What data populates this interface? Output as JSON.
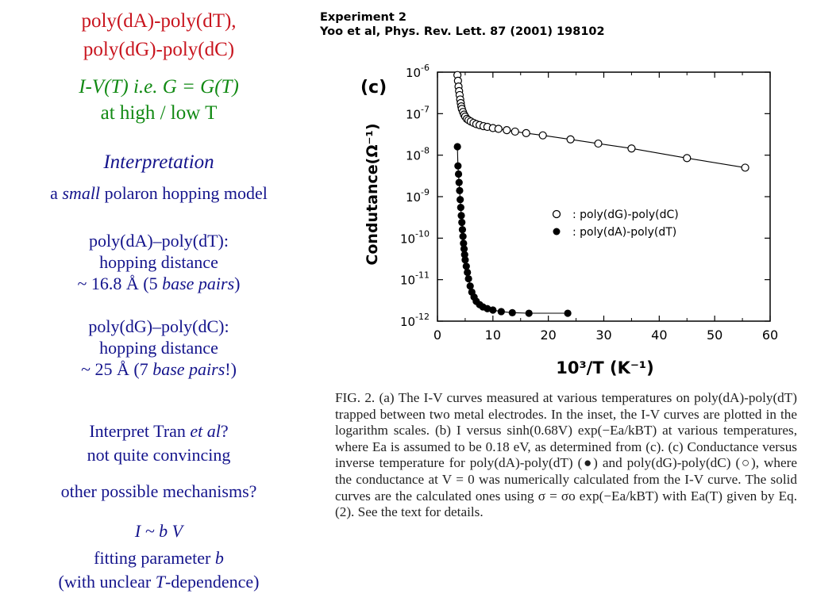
{
  "left": {
    "title_line1": "poly(dA)-poly(dT),",
    "title_line2": "poly(dG)-poly(dC)",
    "iv_line": "I-V(T) i.e. G = G(T)",
    "iv_line2": "at high / low T",
    "interp_heading": "Interpretation",
    "interp_model_a": "a",
    "interp_model_small": "small",
    "interp_model_rest": "polaron hopping model",
    "at_line1": "poly(dA)–poly(dT):",
    "at_line2": "hopping distance",
    "at_line3_a": "~ 16.8 Å (5",
    "at_line3_b": "base pairs",
    "at_line3_c": ")",
    "gc_line1": "poly(dG)–poly(dC):",
    "gc_line2": "hopping distance",
    "gc_line3_a": "~ 25 Å (7",
    "gc_line3_b": "base pairs",
    "gc_line3_c": "!)",
    "tran_a": "Interpret Tran",
    "tran_b": "et al",
    "tran_c": "?",
    "tran_line2": "not quite convincing",
    "other": "other possible mechanisms?",
    "ibv": "I ~ b V",
    "fit_a": "fitting parameter",
    "fit_b": "b",
    "dep_a": "(with unclear",
    "dep_b": "T",
    "dep_c": "-dependence)"
  },
  "experiment": {
    "line1": "Experiment 2",
    "line2": "Yoo et al, Phys. Rev. Lett. 87 (2001) 198102"
  },
  "chart_data": {
    "type": "scatter",
    "panel_label": "(c)",
    "xlabel": "10³/T (K⁻¹)",
    "ylabel": "Condutance(Ω⁻¹)",
    "xlim": [
      0,
      60
    ],
    "ylim_log10": [
      -12,
      -6
    ],
    "y_scale": "log",
    "x_ticks": [
      "0",
      "10",
      "20",
      "30",
      "40",
      "50",
      "60"
    ],
    "y_tick_exponents": [
      "-6",
      "-7",
      "-8",
      "-9",
      "-10",
      "-11",
      "-12"
    ],
    "legend_position": "middle-right",
    "series": [
      {
        "name": "poly(dG)-poly(dC)",
        "marker": "open-circle",
        "x": [
          3.6,
          3.7,
          3.8,
          3.9,
          4.0,
          4.1,
          4.2,
          4.3,
          4.4,
          4.6,
          4.8,
          5.0,
          5.3,
          5.6,
          6.0,
          6.5,
          7.0,
          7.6,
          8.3,
          9.0,
          10.0,
          11.0,
          12.5,
          14.0,
          16.0,
          19.0,
          24.0,
          29.0,
          35.0,
          45.0,
          55.5
        ],
        "y": [
          8.5e-07,
          6.2e-07,
          4.5e-07,
          3.5e-07,
          2.8e-07,
          2.2e-07,
          1.8e-07,
          1.5e-07,
          1.3e-07,
          1.1e-07,
          9.5e-08,
          8.5e-08,
          7.5e-08,
          7e-08,
          6.5e-08,
          6e-08,
          5.6e-08,
          5.3e-08,
          5e-08,
          4.8e-08,
          4.5e-08,
          4.3e-08,
          4e-08,
          3.7e-08,
          3.4e-08,
          3e-08,
          2.4e-08,
          1.9e-08,
          1.45e-08,
          8.5e-09,
          5e-09
        ]
      },
      {
        "name": "poly(dA)-poly(dT)",
        "marker": "filled-circle",
        "x": [
          3.6,
          3.7,
          3.8,
          3.9,
          4.0,
          4.1,
          4.2,
          4.3,
          4.4,
          4.5,
          4.6,
          4.7,
          4.8,
          4.9,
          5.0,
          5.2,
          5.4,
          5.6,
          5.9,
          6.2,
          6.6,
          7.0,
          7.6,
          8.2,
          9.0,
          10.0,
          11.5,
          13.5,
          16.5,
          23.5
        ],
        "y": [
          1.6e-08,
          5.5e-09,
          3.5e-09,
          2.2e-09,
          1.4e-09,
          8.5e-10,
          5.5e-10,
          3.5e-10,
          2.4e-10,
          1.6e-10,
          1.1e-10,
          7.5e-11,
          5.5e-11,
          4e-11,
          3e-11,
          2.1e-11,
          1.5e-11,
          1.05e-11,
          7e-12,
          5e-12,
          3.8e-12,
          3e-12,
          2.5e-12,
          2.2e-12,
          2e-12,
          1.85e-12,
          1.7e-12,
          1.6e-12,
          1.55e-12,
          1.55e-12
        ]
      }
    ]
  },
  "caption": {
    "text": "FIG. 2. (a) The I-V curves measured at various temperatures on poly(dA)-poly(dT) trapped between two metal electrodes. In the inset, the I-V curves are plotted in the logarithm scales. (b) I versus sinh(0.68V) exp(−Ea/kBT) at various temperatures, where Ea is assumed to be 0.18 eV, as determined from (c). (c) Conductance versus inverse temperature for poly(dA)-poly(dT) (●) and poly(dG)-poly(dC) (○), where the conductance at V = 0 was numerically calculated from the I-V curve. The solid curves are the calculated ones using σ = σo exp(−Ea/kBT) with Ea(T) given by Eq. (2). See the text for details."
  }
}
